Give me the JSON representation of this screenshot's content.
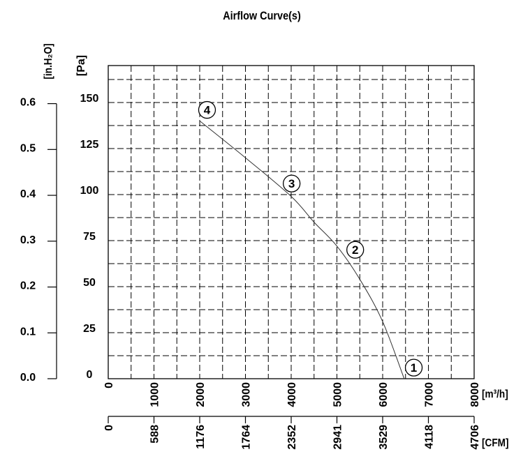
{
  "chart_data": {
    "type": "line",
    "title": "Airflow Curve(s)",
    "xlabel": "[m³/h]",
    "xlabel_secondary": "[CFM]",
    "ylabel": "[Pa]",
    "ylabel_secondary": "[in.H₂O]",
    "xlim": [
      0,
      8000
    ],
    "ylim": [
      0,
      170
    ],
    "grid": true,
    "x_ticks": [
      0,
      1000,
      2000,
      3000,
      4000,
      5000,
      6000,
      7000,
      8000
    ],
    "x_tick_labels": [
      "0",
      "1000",
      "2000",
      "3000",
      "4000",
      "5000",
      "6000",
      "7000",
      "8000"
    ],
    "cfm_tick_labels": [
      "0",
      "588",
      "1176",
      "1764",
      "2352",
      "2941",
      "3529",
      "4118",
      "4706"
    ],
    "y_ticks": [
      0,
      25,
      50,
      75,
      100,
      125,
      150
    ],
    "y_tick_labels": [
      "0",
      "25",
      "50",
      "75",
      "100",
      "125",
      "150"
    ],
    "inh2o_tick_labels": [
      "0.0",
      "0.1",
      "0.2",
      "0.3",
      "0.4",
      "0.5",
      "0.6"
    ],
    "series": [
      {
        "x": [
          2000,
          3000,
          4000,
          4500,
          5000,
          5500,
          6000,
          6470
        ],
        "y": [
          140,
          120,
          99,
          85,
          72,
          54,
          31,
          0
        ]
      }
    ],
    "annotations": [
      {
        "label": "4",
        "x": 2160,
        "y": 146
      },
      {
        "label": "3",
        "x": 4010,
        "y": 106
      },
      {
        "label": "2",
        "x": 5400,
        "y": 70
      },
      {
        "label": "1",
        "x": 6680,
        "y": 6
      }
    ]
  }
}
